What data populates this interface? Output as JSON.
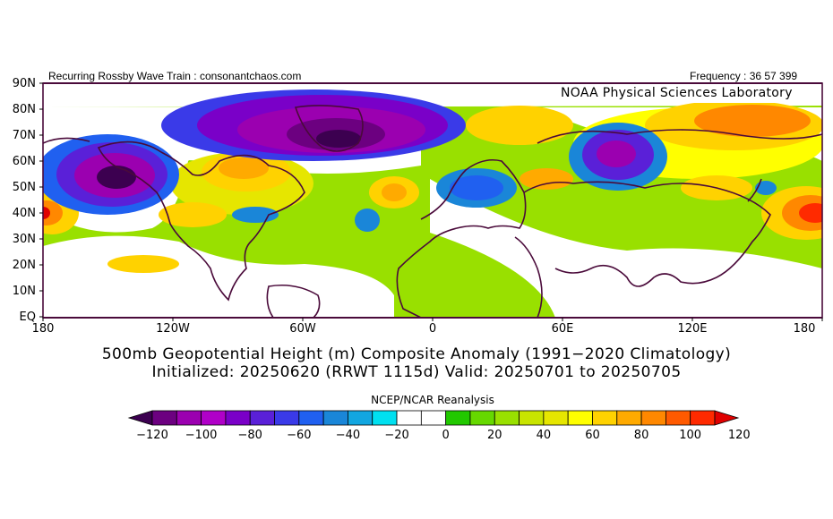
{
  "header": {
    "left_text": "Recurring Rossby Wave Train : consonantchaos.com",
    "right_text": "Frequency : 36 57 399",
    "credit": "NOAA Physical Sciences Laboratory"
  },
  "axes": {
    "lat_labels": [
      "90N",
      "80N",
      "70N",
      "60N",
      "50N",
      "40N",
      "30N",
      "20N",
      "10N",
      "EQ"
    ],
    "lon_labels": [
      "180",
      "120W",
      "60W",
      "0",
      "60E",
      "120E",
      "180"
    ]
  },
  "title": {
    "line1": "500mb Geopotential Height (m) Composite Anomaly (1991−2020 Climatology)",
    "line2": "Initialized: 20250620 (RRWT 1115d) Valid: 20250701 to 20250705"
  },
  "source": "NCEP/NCAR Reanalysis",
  "colorbar": {
    "labels": [
      "−120",
      "−100",
      "−80",
      "−60",
      "−40",
      "−20",
      "0",
      "20",
      "40",
      "60",
      "80",
      "100",
      "120"
    ],
    "colors": [
      "#3c0050",
      "#6c0080",
      "#9b00b0",
      "#b000c8",
      "#7a00c8",
      "#5a20d8",
      "#3a3ae8",
      "#2060f0",
      "#1a86d8",
      "#12a6e0",
      "#00e0f0",
      "#ffffff",
      "#ffffff",
      "#22c800",
      "#66d800",
      "#99e000",
      "#c8e400",
      "#e6e600",
      "#ffff00",
      "#ffd200",
      "#ffaa00",
      "#ff8800",
      "#ff5a00",
      "#ff2a00",
      "#e00000"
    ]
  },
  "map_colors": {
    "ocean_white": "#ffffff",
    "coast": "#4a0a3a",
    "frame": "#4a0a3a"
  }
}
